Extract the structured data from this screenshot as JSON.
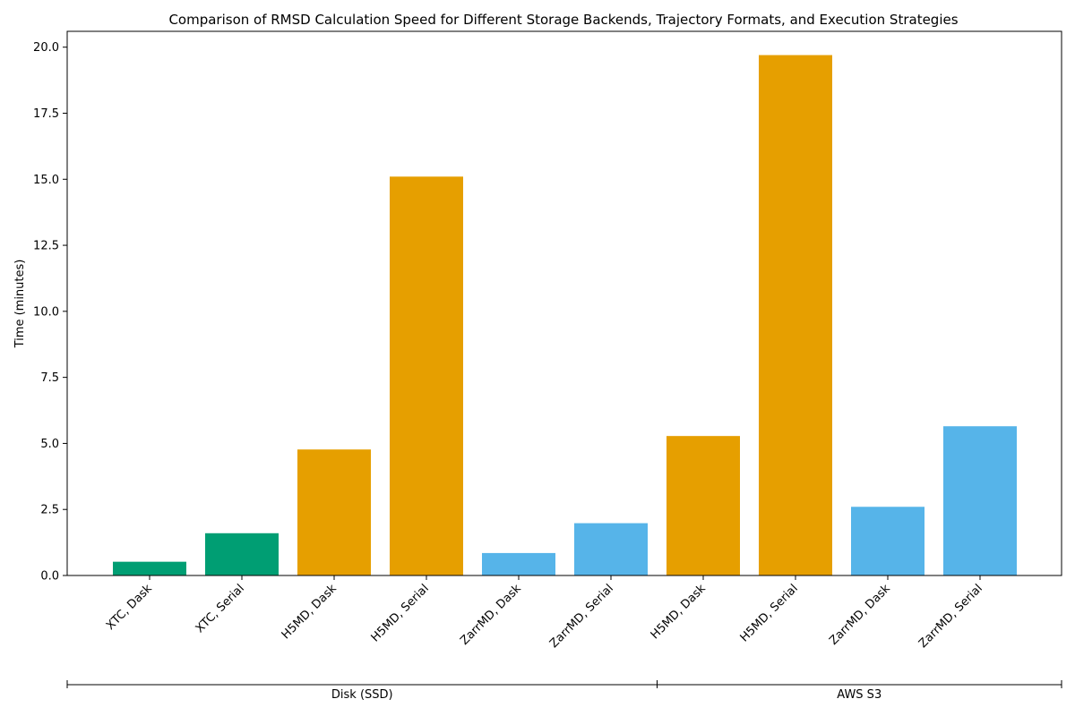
{
  "chart_data": {
    "type": "bar",
    "title": "Comparison of RMSD Calculation Speed for Different Storage Backends, Trajectory Formats, and Execution Strategies",
    "ylabel": "Time (minutes)",
    "xlabel": "",
    "ylim": [
      0,
      20.6
    ],
    "yticks": [
      "0.0",
      "2.5",
      "5.0",
      "7.5",
      "10.0",
      "12.5",
      "15.0",
      "17.5",
      "20.0"
    ],
    "grid": false,
    "categories": [
      "XTC, Dask",
      "XTC, Serial",
      "H5MD, Dask",
      "H5MD, Serial",
      "ZarrMD, Dask",
      "ZarrMD, Serial",
      "H5MD, Dask",
      "H5MD, Serial",
      "ZarrMD, Dask",
      "ZarrMD, Serial"
    ],
    "values": [
      0.52,
      1.6,
      4.77,
      15.1,
      0.85,
      1.98,
      5.28,
      19.7,
      2.6,
      5.65
    ],
    "colors": [
      "#009E73",
      "#009E73",
      "#E69F00",
      "#E69F00",
      "#56B4E9",
      "#56B4E9",
      "#E69F00",
      "#E69F00",
      "#56B4E9",
      "#56B4E9"
    ],
    "groups": [
      {
        "label": "Disk (SSD)",
        "start": 0,
        "end": 5
      },
      {
        "label": "AWS S3",
        "start": 6,
        "end": 9
      }
    ]
  }
}
